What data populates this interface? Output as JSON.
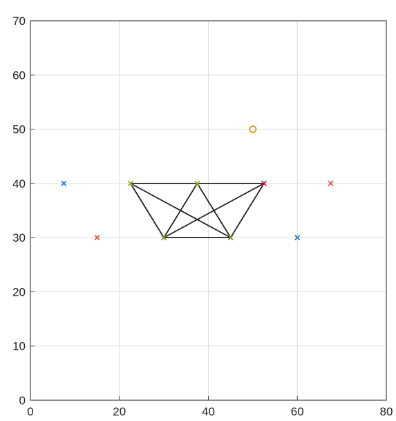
{
  "chart_data": {
    "type": "scatter",
    "title": "",
    "xlabel": "",
    "ylabel": "",
    "xlim": [
      0,
      80
    ],
    "ylim": [
      0,
      70
    ],
    "grid": true,
    "x_ticks": [
      "0",
      "20",
      "40",
      "60",
      "80"
    ],
    "y_ticks": [
      "0",
      "10",
      "20",
      "30",
      "40",
      "50",
      "60",
      "70"
    ],
    "markers": [
      {
        "x": 7.5,
        "y": 40,
        "symbol": "x",
        "color": "#2f7fd0"
      },
      {
        "x": 15,
        "y": 30,
        "symbol": "x",
        "color": "#e05a4a"
      },
      {
        "x": 22.5,
        "y": 40,
        "symbol": "x",
        "color": "#9fb020"
      },
      {
        "x": 30,
        "y": 30,
        "symbol": "x",
        "color": "#8a8a30"
      },
      {
        "x": 37.5,
        "y": 40,
        "symbol": "x",
        "color": "#9fb020"
      },
      {
        "x": 45,
        "y": 30,
        "symbol": "x",
        "color": "#8a8a30"
      },
      {
        "x": 52.5,
        "y": 40,
        "symbol": "x",
        "color": "#c0203a"
      },
      {
        "x": 60,
        "y": 30,
        "symbol": "x",
        "color": "#2f7fd0"
      },
      {
        "x": 67.5,
        "y": 40,
        "symbol": "x",
        "color": "#e05a4a"
      },
      {
        "x": 50,
        "y": 50,
        "symbol": "o",
        "color": "#e8a020"
      }
    ],
    "segments": [
      {
        "x1": 22.5,
        "y1": 40,
        "x2": 52.5,
        "y2": 40
      },
      {
        "x1": 30,
        "y1": 30,
        "x2": 45,
        "y2": 30
      },
      {
        "x1": 22.5,
        "y1": 40,
        "x2": 30,
        "y2": 30
      },
      {
        "x1": 22.5,
        "y1": 40,
        "x2": 45,
        "y2": 30
      },
      {
        "x1": 37.5,
        "y1": 40,
        "x2": 30,
        "y2": 30
      },
      {
        "x1": 37.5,
        "y1": 40,
        "x2": 45,
        "y2": 30
      },
      {
        "x1": 52.5,
        "y1": 40,
        "x2": 30,
        "y2": 30
      },
      {
        "x1": 52.5,
        "y1": 40,
        "x2": 45,
        "y2": 30
      }
    ],
    "line_color": "#222222"
  }
}
